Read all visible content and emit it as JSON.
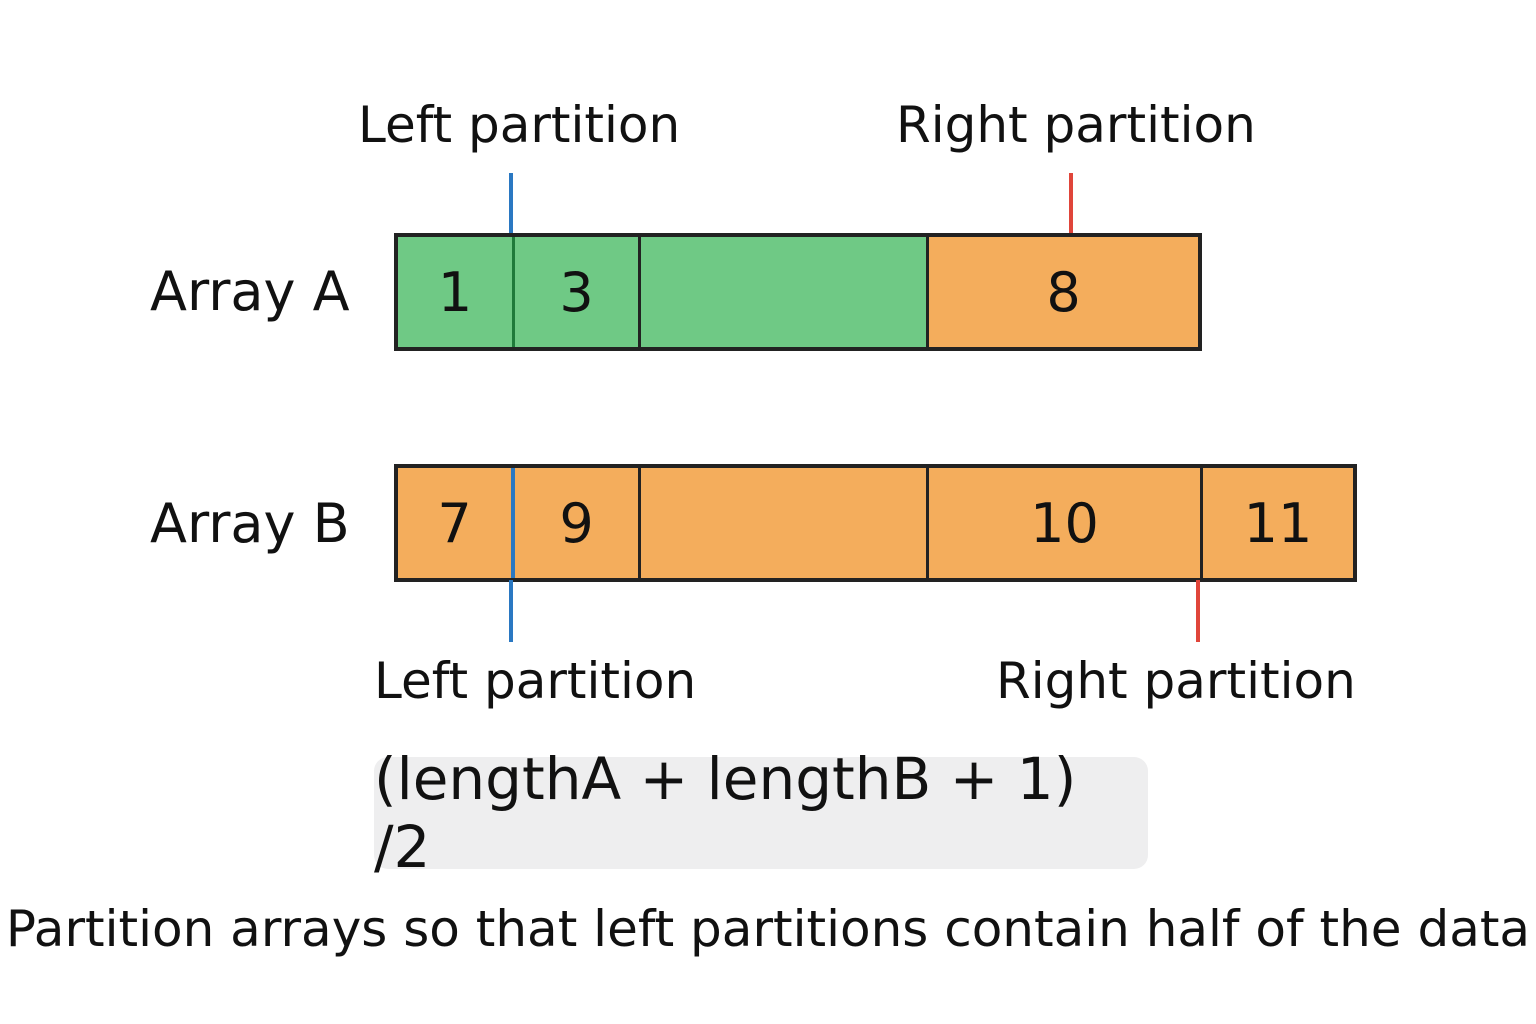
{
  "top_labels": {
    "left": "Left partition",
    "right": "Right partition"
  },
  "bottom_labels": {
    "left": "Left partition",
    "right": "Right partition"
  },
  "array_a": {
    "name": "Array A",
    "cells": [
      {
        "value": "1",
        "color": "#6fc985"
      },
      {
        "value": "3",
        "color": "#6fc985"
      },
      {
        "value": "",
        "color": "#6fc985"
      },
      {
        "value": "8",
        "color": "#f4ad5c"
      }
    ]
  },
  "array_b": {
    "name": "Array B",
    "cells": [
      {
        "value": "7",
        "color": "#f4ad5c"
      },
      {
        "value": "9",
        "color": "#f4ad5c"
      },
      {
        "value": "",
        "color": "#f4ad5c"
      },
      {
        "value": "10",
        "color": "#f4ad5c"
      },
      {
        "value": "11",
        "color": "#f4ad5c"
      }
    ]
  },
  "colors": {
    "left_marker": "#2a78c2",
    "right_marker": "#e0453a",
    "inner_divider": "#1f7a3a"
  },
  "formula": "(lengthA + lengthB + 1) /2",
  "caption": "Partition arrays so that left partitions contain half of the data"
}
